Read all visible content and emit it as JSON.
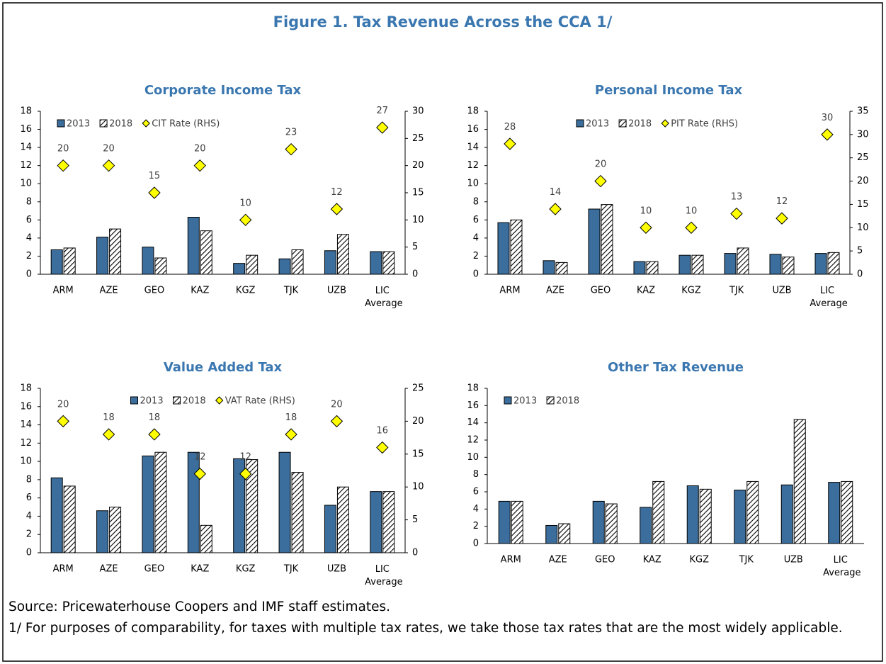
{
  "figure": {
    "title": "Figure 1. Tax Revenue Across the CCA 1/"
  },
  "chart_data": [
    {
      "type": "bar",
      "title": "Corporate Income Tax",
      "legend": "upper left",
      "categories": [
        "ARM",
        "AZE",
        "GEO",
        "KAZ",
        "KGZ",
        "TJK",
        "UZB",
        "LIC Average"
      ],
      "series": [
        {
          "name": "2013",
          "color": "#3b6e9c",
          "values": [
            2.7,
            4.1,
            3.0,
            6.3,
            1.2,
            1.7,
            2.6,
            2.5
          ]
        },
        {
          "name": "2018",
          "color": "#000000",
          "pattern": "hatch",
          "values": [
            2.9,
            5.0,
            1.8,
            4.8,
            2.1,
            2.7,
            4.4,
            2.5
          ]
        },
        {
          "name": "CIT Rate (RHS)",
          "color": "#ffff00",
          "type": "scatter",
          "axis": "y2",
          "values": [
            20,
            20,
            15,
            20,
            10,
            23,
            12,
            27
          ]
        }
      ],
      "ylim": [
        0,
        18
      ],
      "yticks": [
        0,
        2,
        4,
        6,
        8,
        10,
        12,
        14,
        16,
        18
      ],
      "y2lim": [
        0,
        30
      ],
      "y2ticks": [
        0,
        5,
        10,
        15,
        20,
        25,
        30
      ]
    },
    {
      "type": "bar",
      "title": "Personal Income Tax",
      "legend": "upper center",
      "categories": [
        "ARM",
        "AZE",
        "GEO",
        "KAZ",
        "KGZ",
        "TJK",
        "UZB",
        "LIC Average"
      ],
      "series": [
        {
          "name": "2013",
          "color": "#3b6e9c",
          "values": [
            5.7,
            1.5,
            7.2,
            1.4,
            2.1,
            2.3,
            2.2,
            2.3
          ]
        },
        {
          "name": "2018",
          "color": "#000000",
          "pattern": "hatch",
          "values": [
            6.0,
            1.3,
            7.7,
            1.4,
            2.1,
            2.9,
            1.9,
            2.4
          ]
        },
        {
          "name": "PIT Rate (RHS)",
          "color": "#ffff00",
          "type": "scatter",
          "axis": "y2",
          "values": [
            28,
            14,
            20,
            10,
            10,
            13,
            12,
            30
          ]
        }
      ],
      "ylim": [
        0,
        18
      ],
      "yticks": [
        0,
        2,
        4,
        6,
        8,
        10,
        12,
        14,
        16,
        18
      ],
      "y2lim": [
        0,
        35
      ],
      "y2ticks": [
        0,
        5,
        10,
        15,
        20,
        25,
        30,
        35
      ]
    },
    {
      "type": "bar",
      "title": "Value Added Tax",
      "legend": "upper center",
      "categories": [
        "ARM",
        "AZE",
        "GEO",
        "KAZ",
        "KGZ",
        "TJK",
        "UZB",
        "LIC Average"
      ],
      "series": [
        {
          "name": "2013",
          "color": "#3b6e9c",
          "values": [
            8.2,
            4.6,
            10.6,
            11.0,
            10.3,
            11.0,
            5.2,
            6.7
          ]
        },
        {
          "name": "2018",
          "color": "#000000",
          "pattern": "hatch",
          "values": [
            7.3,
            5.0,
            11.0,
            3.0,
            10.2,
            8.8,
            7.2,
            6.7
          ]
        },
        {
          "name": "VAT Rate (RHS)",
          "color": "#ffff00",
          "type": "scatter",
          "axis": "y2",
          "values": [
            20,
            18,
            18,
            12,
            12,
            18,
            20,
            16
          ]
        }
      ],
      "ylim": [
        0,
        18
      ],
      "yticks": [
        0,
        2,
        4,
        6,
        8,
        10,
        12,
        14,
        16,
        18
      ],
      "y2lim": [
        0,
        25
      ],
      "y2ticks": [
        0,
        5,
        10,
        15,
        20,
        25
      ]
    },
    {
      "type": "bar",
      "title": "Other Tax Revenue",
      "legend": "upper left",
      "categories": [
        "ARM",
        "AZE",
        "GEO",
        "KAZ",
        "KGZ",
        "TJK",
        "UZB",
        "LIC Average"
      ],
      "series": [
        {
          "name": "2013",
          "color": "#3b6e9c",
          "values": [
            4.9,
            2.1,
            4.9,
            4.2,
            6.7,
            6.2,
            6.8,
            7.1
          ]
        },
        {
          "name": "2018",
          "color": "#000000",
          "pattern": "hatch",
          "values": [
            4.9,
            2.3,
            4.6,
            7.2,
            6.3,
            7.2,
            14.4,
            7.2
          ]
        }
      ],
      "ylim": [
        0,
        18
      ],
      "yticks": [
        0,
        2,
        4,
        6,
        8,
        10,
        12,
        14,
        16,
        18
      ]
    }
  ],
  "notes": [
    "Source: Pricewaterhouse Coopers and IMF staff estimates.",
    "1/ For purposes of comparability, for taxes with multiple tax rates, we take those tax rates that are the most widely applicable."
  ]
}
